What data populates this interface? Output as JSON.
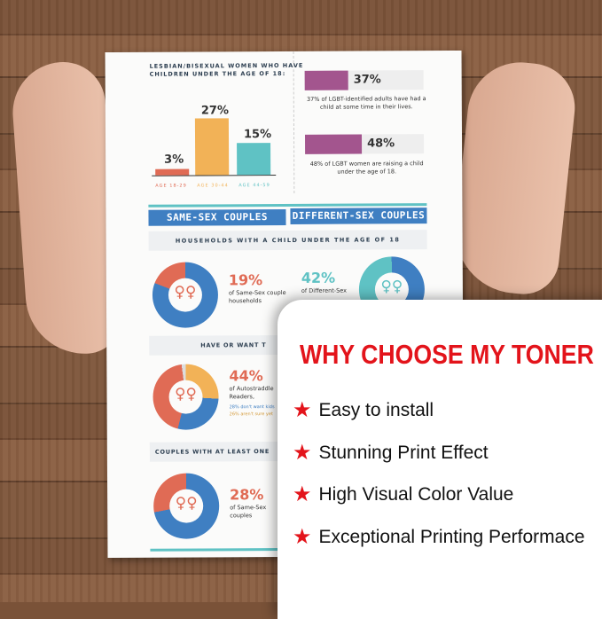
{
  "infographic": {
    "bar_title": "LESBIAN/BISEXUAL WOMEN WHO HAVE CHILDREN UNDER THE AGE OF 18:",
    "bars": [
      {
        "label": "AGE 18-29",
        "value": "3%",
        "pct": 3,
        "color": "#e06b55"
      },
      {
        "label": "AGE 30-44",
        "value": "27%",
        "pct": 27,
        "color": "#f2b257"
      },
      {
        "label": "AGE 44-59",
        "value": "15%",
        "pct": 15,
        "color": "#5fc2c4"
      }
    ],
    "stats": [
      {
        "value": "37%",
        "pct": 37,
        "text": "37% of LGBT-identified adults have had a child at some time in their lives."
      },
      {
        "value": "48%",
        "pct": 48,
        "text": "48% of LGBT women are raising a child under the age of 18."
      }
    ],
    "header_left": "SAME-SEX COUPLES",
    "header_right": "DIFFERENT-SEX COUPLES",
    "strip1": "HOUSEHOLDS WITH A CHILD UNDER THE AGE OF 18",
    "d1": {
      "value": "19%",
      "text": "of Same-Sex couple households"
    },
    "d2": {
      "value": "42%",
      "text": "of Different-Sex"
    },
    "strip2": "HAVE OR WANT T",
    "d3": {
      "value": "44%",
      "text": "of Autostraddle Readers,",
      "note1": "28% don't want kids",
      "note2": "26% aren't sure yet"
    },
    "strip3": "COUPLES WITH AT LEAST ONE",
    "d4": {
      "value": "28%",
      "text": "of Same-Sex couples"
    },
    "symbol": "♀♀"
  },
  "card": {
    "title": "WHY CHOOSE MY TONER",
    "items": [
      "Easy to install",
      "Stunning Print Effect",
      "High Visual Color Value",
      "Exceptional Printing Performace"
    ],
    "accent": "#e3141b"
  }
}
